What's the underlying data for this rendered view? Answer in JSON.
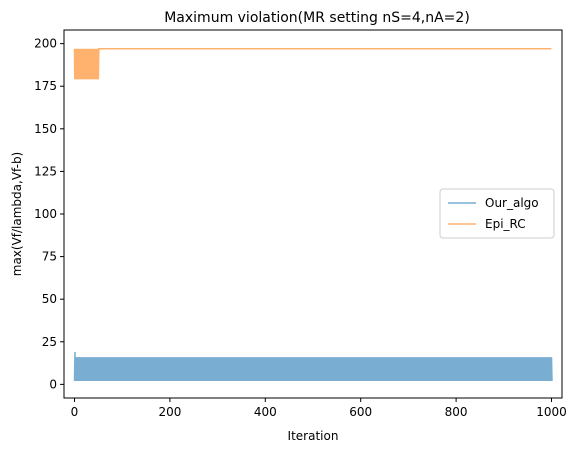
{
  "chart_data": {
    "type": "line",
    "title": "Maximum violation(MR setting nS=4,nA=2)",
    "xlabel": "Iteration",
    "ylabel": "max(Vf/lambda,Vf-b)",
    "xlim": [
      -22,
      1022
    ],
    "ylim": [
      -8,
      208
    ],
    "xticks": [
      0,
      200,
      400,
      600,
      800,
      1000
    ],
    "yticks": [
      0,
      25,
      50,
      75,
      100,
      125,
      150,
      175,
      200
    ],
    "grid": false,
    "legend_position": "center-right",
    "series": [
      {
        "name": "Our_algo",
        "color": "#1f77b4",
        "alpha": 0.6,
        "description_band": {
          "x_start": 0,
          "x_end": 1000,
          "low": 2,
          "high": 16
        },
        "spike": {
          "x": 1,
          "y": 19
        }
      },
      {
        "name": "Epi_RC",
        "color": "#ff7f0e",
        "alpha": 0.6,
        "oscillation": {
          "x_start": 0,
          "x_end": 52,
          "low": 179,
          "high": 197
        },
        "steady": {
          "x_start": 52,
          "x_end": 1000,
          "value": 197
        }
      }
    ]
  }
}
